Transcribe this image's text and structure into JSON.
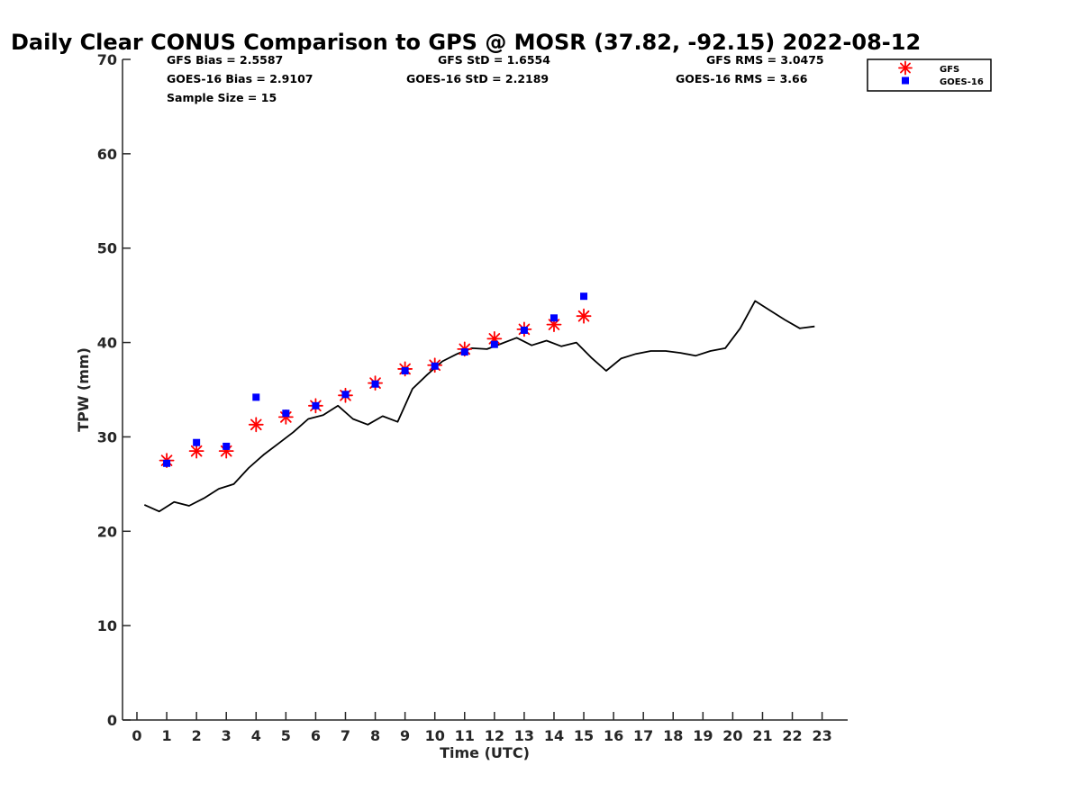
{
  "chart_data": {
    "type": "scatter",
    "title": "Daily Clear CONUS Comparison to GPS @ MOSR (37.82, -92.15) 2022-08-12",
    "xlabel": "Time (UTC)",
    "ylabel": "TPW (mm)",
    "xlim": [
      -0.5,
      23.7
    ],
    "ylim": [
      0,
      70
    ],
    "xticks": [
      0,
      1,
      2,
      3,
      4,
      5,
      6,
      7,
      8,
      9,
      10,
      11,
      12,
      13,
      14,
      15,
      16,
      17,
      18,
      19,
      20,
      21,
      22,
      23
    ],
    "yticks": [
      0,
      10,
      20,
      30,
      40,
      50,
      60,
      70
    ],
    "legend_position": "top-right, outside plot",
    "stats": {
      "gfs_bias": "GFS Bias = 2.5587",
      "goes_bias": "GOES-16 Bias = 2.9107",
      "sample_size": "Sample Size = 15",
      "gfs_std": "GFS StD = 1.6554",
      "goes_std": "GOES-16 StD = 2.2189",
      "gfs_rms": "GFS RMS = 3.0475",
      "goes_rms": "GOES-16 RMS = 3.66"
    },
    "series": [
      {
        "name": "GFS",
        "marker": "asterisk",
        "color": "#ff0000",
        "x": [
          1,
          2,
          3,
          4,
          5,
          6,
          7,
          8,
          9,
          10,
          11,
          12,
          13,
          14,
          15
        ],
        "y": [
          27.5,
          28.5,
          28.5,
          31.3,
          32.1,
          33.3,
          34.4,
          35.7,
          37.2,
          37.6,
          39.3,
          40.4,
          41.4,
          41.9,
          42.8
        ]
      },
      {
        "name": "GOES-16",
        "marker": "square",
        "color": "#0000ff",
        "x": [
          1,
          2,
          3,
          4,
          5,
          6,
          7,
          8,
          9,
          10,
          11,
          12,
          13,
          14,
          15
        ],
        "y": [
          27.2,
          29.4,
          29.0,
          34.2,
          32.5,
          33.3,
          34.5,
          35.6,
          37.0,
          37.5,
          39.0,
          39.8,
          41.3,
          42.6,
          44.9
        ]
      },
      {
        "name": "GPS",
        "marker": "line",
        "color": "#000000",
        "x": [
          0.25,
          0.75,
          1.25,
          1.75,
          2.25,
          2.75,
          3.25,
          3.75,
          4.25,
          4.75,
          5.25,
          5.75,
          6.25,
          6.75,
          7.25,
          7.75,
          8.25,
          8.75,
          9.25,
          9.75,
          10.25,
          10.75,
          11.25,
          11.75,
          12.25,
          12.75,
          13.25,
          13.75,
          14.25,
          14.75,
          15.25,
          15.75,
          16.25,
          16.75,
          17.25,
          17.75,
          18.25,
          18.75,
          19.25,
          19.75,
          20.25,
          20.75,
          21.25,
          21.75,
          22.25,
          22.75
        ],
        "y": [
          22.8,
          22.1,
          23.1,
          22.7,
          23.5,
          24.5,
          25.0,
          26.7,
          28.1,
          29.3,
          30.5,
          31.9,
          32.3,
          33.3,
          31.9,
          31.3,
          32.2,
          31.6,
          35.1,
          36.6,
          38.0,
          38.8,
          39.4,
          39.3,
          39.9,
          40.5,
          39.7,
          40.2,
          39.6,
          40.0,
          38.4,
          37.0,
          38.3,
          38.8,
          39.1,
          39.1,
          38.9,
          38.6,
          39.1,
          39.4,
          41.5,
          44.4,
          43.4,
          42.4,
          41.5,
          41.7
        ]
      }
    ]
  }
}
